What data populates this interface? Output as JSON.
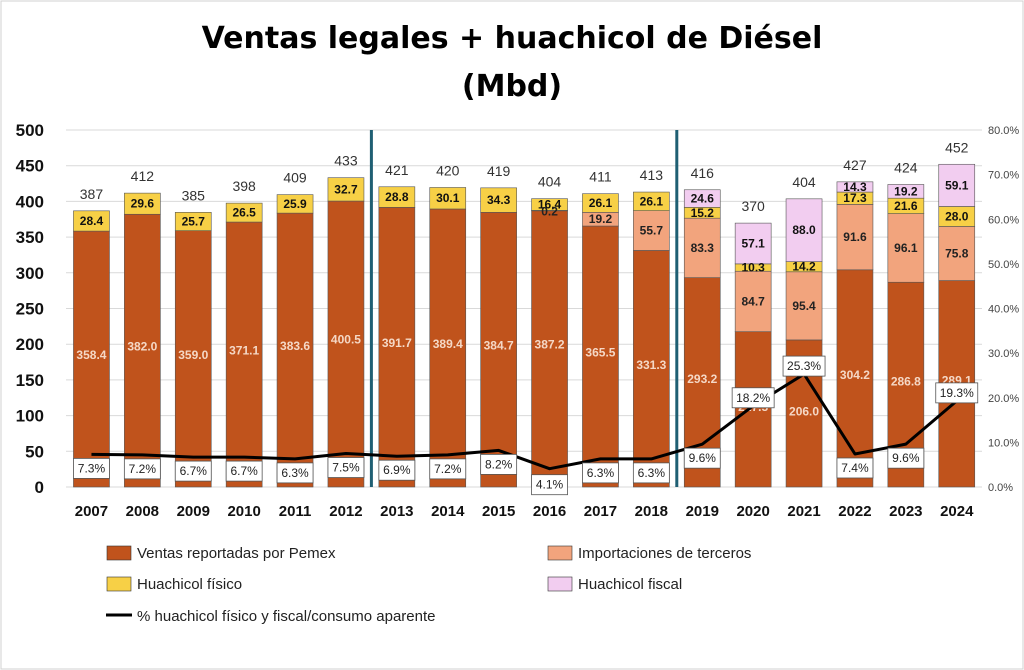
{
  "chart_data": {
    "type": "bar",
    "title_line1": "Ventas legales + huachicol de Diésel",
    "title_line2": "(Mbd)",
    "categories": [
      "2007",
      "2008",
      "2009",
      "2010",
      "2011",
      "2012",
      "2013",
      "2014",
      "2015",
      "2016",
      "2017",
      "2018",
      "2019",
      "2020",
      "2021",
      "2022",
      "2023",
      "2024"
    ],
    "series": [
      {
        "name": "Ventas reportadas por Pemex",
        "color": "#c0531c",
        "label_color": "#f5d8c6",
        "values": [
          358.4,
          382.0,
          359.0,
          371.1,
          383.6,
          400.5,
          391.7,
          389.4,
          384.7,
          387.2,
          365.5,
          331.3,
          293.2,
          217.5,
          206.0,
          304.2,
          286.8,
          289.1
        ]
      },
      {
        "name": "Importaciones de terceros",
        "color": "#f2a47d",
        "label_color": "#222222",
        "values": [
          null,
          null,
          null,
          null,
          null,
          null,
          null,
          null,
          null,
          0.2,
          19.2,
          55.7,
          83.3,
          84.7,
          95.4,
          91.6,
          96.1,
          75.8
        ]
      },
      {
        "name": "Huachicol físico",
        "color": "#f7d046",
        "label_color": "#111111",
        "values": [
          28.4,
          29.6,
          25.7,
          26.5,
          25.9,
          32.7,
          28.8,
          30.1,
          34.3,
          16.4,
          26.1,
          26.1,
          15.2,
          10.3,
          14.2,
          17.3,
          21.6,
          28.0
        ]
      },
      {
        "name": "Huachicol fiscal",
        "color": "#f2cdf0",
        "label_color": "#111111",
        "values": [
          null,
          null,
          null,
          null,
          null,
          null,
          null,
          null,
          null,
          null,
          null,
          null,
          24.6,
          57.1,
          88.0,
          14.3,
          19.2,
          59.1
        ]
      }
    ],
    "totals": [
      "387",
      "412",
      "385",
      "398",
      "409",
      "433",
      "421",
      "420",
      "419",
      "404",
      "411",
      "413",
      "416",
      "370",
      "404",
      "427",
      "424",
      "452"
    ],
    "line_series": {
      "name": "% huachicol físico y fiscal/consumo aparente",
      "color": "#000000",
      "values": [
        7.3,
        7.2,
        6.7,
        6.7,
        6.3,
        7.5,
        6.9,
        7.2,
        8.2,
        4.1,
        6.3,
        6.3,
        9.6,
        18.2,
        25.3,
        7.4,
        9.6,
        19.3
      ],
      "labels": [
        "7.3%",
        "7.2%",
        "6.7%",
        "6.7%",
        "6.3%",
        "7.5%",
        "6.9%",
        "7.2%",
        "8.2%",
        "4.1%",
        "6.3%",
        "6.3%",
        "9.6%",
        "18.2%",
        "25.3%",
        "7.4%",
        "9.6%",
        "19.3%"
      ]
    },
    "y_axis": {
      "min": 0,
      "max": 500,
      "ticks": [
        "0",
        "50",
        "100",
        "150",
        "200",
        "250",
        "300",
        "350",
        "400",
        "450",
        "500"
      ]
    },
    "y2_axis": {
      "min": 0,
      "max": 80,
      "ticks": [
        "0.0%",
        "10.0%",
        "20.0%",
        "30.0%",
        "40.0%",
        "50.0%",
        "60.0%",
        "70.0%",
        "80.0%"
      ]
    },
    "separators_after": [
      "2012",
      "2018"
    ],
    "separator_color": "#1f5f73",
    "grid": true,
    "legend_position": "bottom"
  }
}
